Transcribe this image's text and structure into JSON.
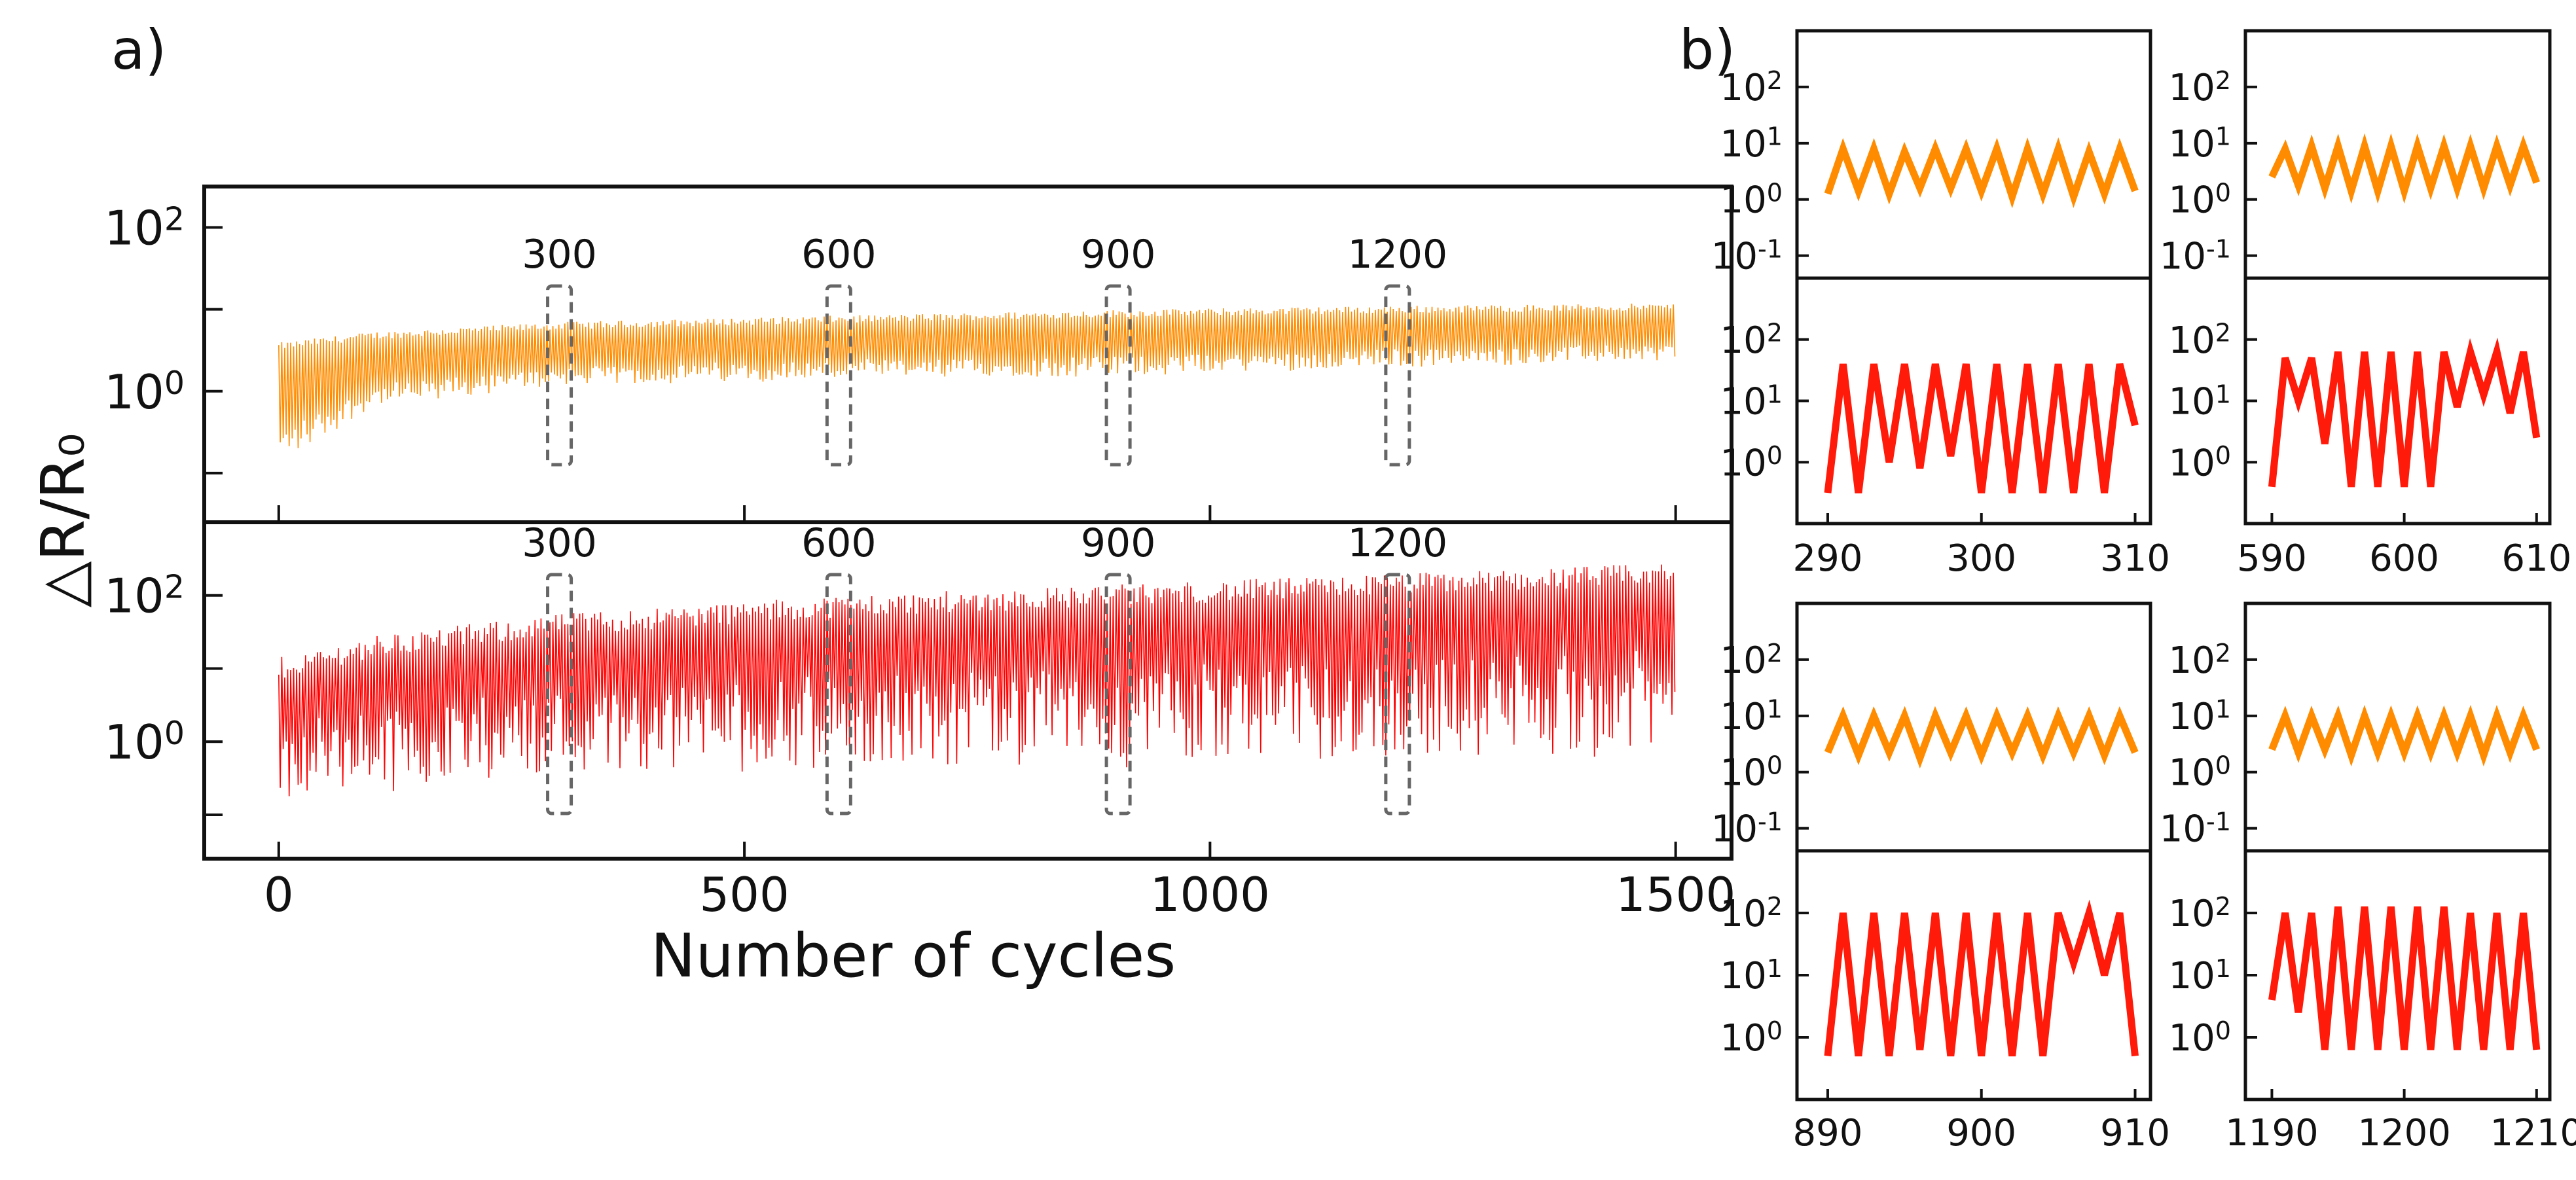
{
  "panel_labels": {
    "a": "a)",
    "b": "b)"
  },
  "chart_data": [
    {
      "id": "a",
      "type": "line",
      "title": "",
      "xlabel": "Number of cycles",
      "ylabel": "△R/R₀",
      "xlim": [
        -80,
        1560
      ],
      "x_ticks": [
        0,
        500,
        1000,
        1500
      ],
      "scale": "log",
      "grid": false,
      "highlight_cycles": [
        300,
        600,
        900,
        1200
      ],
      "highlight_labels": [
        "300",
        "600",
        "900",
        "1200"
      ],
      "panels": [
        {
          "name": "top",
          "color": "#FF8C00",
          "ylim_log10": [
            -1.6,
            2.5
          ],
          "y_ticks_labeled": [
            {
              "exp": 2,
              "label": "10",
              "sup": "2"
            },
            {
              "exp": 0,
              "label": "10",
              "sup": "0"
            }
          ],
          "y_ticks_minor_log10": [
            1,
            -1
          ],
          "envelope_upper_log10": [
            [
              0,
              0.55
            ],
            [
              100,
              0.68
            ],
            [
              300,
              0.8
            ],
            [
              600,
              0.88
            ],
            [
              900,
              0.95
            ],
            [
              1200,
              1.0
            ],
            [
              1500,
              1.03
            ]
          ],
          "envelope_lower_log10": [
            [
              0,
              -0.9
            ],
            [
              100,
              -0.2
            ],
            [
              300,
              0.08
            ],
            [
              600,
              0.15
            ],
            [
              900,
              0.2
            ],
            [
              1200,
              0.3
            ],
            [
              1500,
              0.38
            ]
          ]
        },
        {
          "name": "bottom",
          "color": "#FF0000",
          "ylim_log10": [
            -1.6,
            3.0
          ],
          "y_ticks_labeled": [
            {
              "exp": 2,
              "label": "10",
              "sup": "2"
            },
            {
              "exp": 0,
              "label": "10",
              "sup": "0"
            }
          ],
          "y_ticks_minor_log10": [
            1,
            -1
          ],
          "envelope_upper_log10": [
            [
              0,
              1.0
            ],
            [
              100,
              1.3
            ],
            [
              300,
              1.6
            ],
            [
              600,
              1.85
            ],
            [
              900,
              2.0
            ],
            [
              1200,
              2.15
            ],
            [
              1500,
              2.3
            ]
          ],
          "envelope_lower_log10": [
            [
              0,
              -0.9
            ],
            [
              100,
              -0.65
            ],
            [
              300,
              -0.4
            ],
            [
              600,
              -0.35
            ],
            [
              900,
              -0.3
            ],
            [
              1200,
              -0.25
            ],
            [
              1500,
              -0.15
            ]
          ]
        }
      ]
    },
    {
      "id": "b",
      "type": "line",
      "title": "",
      "scale": "log",
      "grid": false,
      "subplots": [
        {
          "window": "300",
          "x_ticks": [
            290,
            300,
            310
          ],
          "xlim": [
            288,
            311
          ],
          "orange": {
            "ylim_log10": [
              -1.4,
              3.0
            ],
            "y_ticks": [
              {
                "exp": 2,
                "sup": "2"
              },
              {
                "exp": 1,
                "sup": "1"
              },
              {
                "exp": 0,
                "sup": "0"
              },
              {
                "exp": -1,
                "sup": "-1"
              }
            ],
            "x": [
              290,
              291,
              292,
              293,
              294,
              295,
              296,
              297,
              298,
              299,
              300,
              301,
              302,
              303,
              304,
              305,
              306,
              307,
              308,
              309,
              310
            ],
            "log10_values": [
              0.1,
              0.9,
              0.15,
              0.9,
              0.1,
              0.85,
              0.2,
              0.9,
              0.2,
              0.9,
              0.15,
              0.9,
              0.05,
              0.9,
              0.1,
              0.9,
              0.05,
              0.85,
              0.1,
              0.9,
              0.15
            ]
          },
          "red": {
            "ylim_log10": [
              -1.0,
              3.0
            ],
            "y_ticks": [
              {
                "exp": 2,
                "sup": "2"
              },
              {
                "exp": 1,
                "sup": "1"
              },
              {
                "exp": 0,
                "sup": "0"
              }
            ],
            "x": [
              290,
              291,
              292,
              293,
              294,
              295,
              296,
              297,
              298,
              299,
              300,
              301,
              302,
              303,
              304,
              305,
              306,
              307,
              308,
              309,
              310
            ],
            "log10_values": [
              -0.5,
              1.6,
              -0.5,
              1.6,
              0.0,
              1.6,
              -0.1,
              1.6,
              0.1,
              1.6,
              -0.5,
              1.6,
              -0.5,
              1.6,
              -0.5,
              1.6,
              -0.5,
              1.6,
              -0.5,
              1.6,
              0.6
            ]
          }
        },
        {
          "window": "600",
          "x_ticks": [
            590,
            600,
            610
          ],
          "xlim": [
            588,
            611
          ],
          "orange": {
            "ylim_log10": [
              -1.4,
              3.0
            ],
            "y_ticks": [
              {
                "exp": 2,
                "sup": "2"
              },
              {
                "exp": 1,
                "sup": "1"
              },
              {
                "exp": 0,
                "sup": "0"
              },
              {
                "exp": -1,
                "sup": "-1"
              }
            ],
            "x": [
              590,
              591,
              592,
              593,
              594,
              595,
              596,
              597,
              598,
              599,
              600,
              601,
              602,
              603,
              604,
              605,
              606,
              607,
              608,
              609,
              610
            ],
            "log10_values": [
              0.4,
              0.9,
              0.25,
              0.95,
              0.2,
              0.95,
              0.15,
              0.95,
              0.15,
              0.95,
              0.15,
              0.95,
              0.2,
              0.95,
              0.2,
              0.95,
              0.2,
              0.95,
              0.25,
              0.95,
              0.3
            ]
          },
          "red": {
            "ylim_log10": [
              -1.0,
              3.0
            ],
            "y_ticks": [
              {
                "exp": 2,
                "sup": "2"
              },
              {
                "exp": 1,
                "sup": "1"
              },
              {
                "exp": 0,
                "sup": "0"
              }
            ],
            "x": [
              590,
              591,
              592,
              593,
              594,
              595,
              596,
              597,
              598,
              599,
              600,
              601,
              602,
              603,
              604,
              605,
              606,
              607,
              608,
              609,
              610
            ],
            "log10_values": [
              -0.4,
              1.7,
              1.0,
              1.7,
              0.3,
              1.8,
              -0.4,
              1.8,
              -0.4,
              1.8,
              -0.4,
              1.8,
              -0.4,
              1.8,
              0.9,
              1.8,
              1.1,
              1.8,
              0.8,
              1.8,
              0.4
            ]
          }
        },
        {
          "window": "900",
          "x_ticks": [
            890,
            900,
            910
          ],
          "xlim": [
            888,
            911
          ],
          "orange": {
            "ylim_log10": [
              -1.4,
              3.0
            ],
            "y_ticks": [
              {
                "exp": 2,
                "sup": "2"
              },
              {
                "exp": 1,
                "sup": "1"
              },
              {
                "exp": 0,
                "sup": "0"
              },
              {
                "exp": -1,
                "sup": "-1"
              }
            ],
            "x": [
              890,
              891,
              892,
              893,
              894,
              895,
              896,
              897,
              898,
              899,
              900,
              901,
              902,
              903,
              904,
              905,
              906,
              907,
              908,
              909,
              910
            ],
            "log10_values": [
              0.35,
              1.0,
              0.3,
              1.0,
              0.35,
              1.0,
              0.25,
              1.0,
              0.35,
              1.0,
              0.3,
              1.0,
              0.35,
              1.0,
              0.3,
              1.0,
              0.35,
              1.0,
              0.3,
              1.0,
              0.35
            ]
          },
          "red": {
            "ylim_log10": [
              -1.0,
              3.0
            ],
            "y_ticks": [
              {
                "exp": 2,
                "sup": "2"
              },
              {
                "exp": 1,
                "sup": "1"
              },
              {
                "exp": 0,
                "sup": "0"
              }
            ],
            "x": [
              890,
              891,
              892,
              893,
              894,
              895,
              896,
              897,
              898,
              899,
              900,
              901,
              902,
              903,
              904,
              905,
              906,
              907,
              908,
              909,
              910
            ],
            "log10_values": [
              -0.3,
              2.0,
              -0.3,
              2.0,
              -0.3,
              2.0,
              -0.2,
              2.0,
              -0.3,
              2.0,
              -0.3,
              2.0,
              -0.3,
              2.0,
              -0.3,
              2.0,
              1.2,
              2.0,
              1.0,
              2.0,
              -0.3
            ]
          }
        },
        {
          "window": "1200",
          "x_ticks": [
            1190,
            1200,
            1210
          ],
          "xlim": [
            1188,
            1211
          ],
          "orange": {
            "ylim_log10": [
              -1.4,
              3.0
            ],
            "y_ticks": [
              {
                "exp": 2,
                "sup": "2"
              },
              {
                "exp": 1,
                "sup": "1"
              },
              {
                "exp": 0,
                "sup": "0"
              },
              {
                "exp": -1,
                "sup": "-1"
              }
            ],
            "x": [
              1190,
              1191,
              1192,
              1193,
              1194,
              1195,
              1196,
              1197,
              1198,
              1199,
              1200,
              1201,
              1202,
              1203,
              1204,
              1205,
              1206,
              1207,
              1208,
              1209,
              1210
            ],
            "log10_values": [
              0.4,
              1.0,
              0.35,
              1.0,
              0.4,
              1.0,
              0.3,
              1.0,
              0.35,
              1.0,
              0.35,
              1.0,
              0.35,
              1.0,
              0.35,
              1.0,
              0.3,
              1.0,
              0.35,
              1.0,
              0.4
            ]
          },
          "red": {
            "ylim_log10": [
              -1.0,
              3.0
            ],
            "y_ticks": [
              {
                "exp": 2,
                "sup": "2"
              },
              {
                "exp": 1,
                "sup": "1"
              },
              {
                "exp": 0,
                "sup": "0"
              }
            ],
            "x": [
              1190,
              1191,
              1192,
              1193,
              1194,
              1195,
              1196,
              1197,
              1198,
              1199,
              1200,
              1201,
              1202,
              1203,
              1204,
              1205,
              1206,
              1207,
              1208,
              1209,
              1210
            ],
            "log10_values": [
              0.6,
              2.0,
              0.4,
              2.0,
              -0.2,
              2.1,
              -0.2,
              2.1,
              -0.2,
              2.1,
              -0.2,
              2.1,
              -0.2,
              2.1,
              -0.2,
              2.0,
              -0.2,
              2.0,
              -0.2,
              2.0,
              -0.2
            ]
          }
        }
      ]
    }
  ]
}
